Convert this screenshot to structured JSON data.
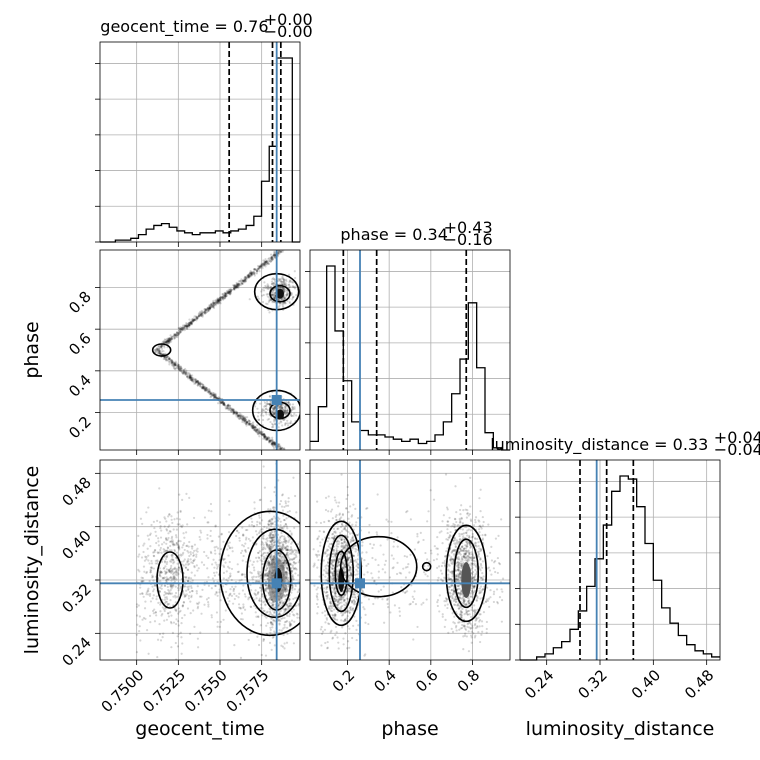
{
  "chart_data": {
    "type": "corner",
    "parameters": [
      {
        "name": "geocent_time",
        "ticks": [
          0.75,
          0.7525,
          0.755,
          0.7575
        ],
        "tick_labels": [
          "0.7500",
          "0.7525",
          "0.7550",
          "0.7575"
        ],
        "range": [
          0.7478,
          0.7598
        ],
        "truth": 0.7584
      },
      {
        "name": "phase",
        "ticks": [
          0.2,
          0.4,
          0.6,
          0.8
        ],
        "tick_labels": [
          "0.2",
          "0.4",
          "0.6",
          "0.8"
        ],
        "range": [
          0.02,
          0.98
        ],
        "truth": 0.26
      },
      {
        "name": "luminosity_distance",
        "ticks": [
          0.24,
          0.32,
          0.4,
          0.48
        ],
        "tick_labels": [
          "0.24",
          "0.32",
          "0.40",
          "0.48"
        ],
        "range": [
          0.2,
          0.5
        ],
        "truth": 0.315
      }
    ],
    "titles": [
      {
        "base": "geocent_time = 0.76",
        "sup": "+0.00",
        "sub": "−0.00"
      },
      {
        "base": "phase = 0.34",
        "sup": "+0.43",
        "sub": "−0.16"
      },
      {
        "base": "luminosity_distance = 0.33",
        "sup": "+0.04",
        "sub": "−0.04"
      }
    ],
    "quantiles": [
      [
        0.75555,
        0.75815,
        0.75865
      ],
      [
        0.18,
        0.34,
        0.77
      ],
      [
        0.29,
        0.33,
        0.37
      ]
    ],
    "histograms": [
      {
        "edges_start": 0.7478,
        "edges_end": 0.7598,
        "counts": [
          0,
          0,
          1,
          1,
          2,
          4,
          7,
          9,
          10,
          8,
          6,
          5,
          4,
          5,
          5,
          6,
          5,
          6,
          7,
          9,
          14,
          33,
          52,
          100,
          100,
          0
        ]
      },
      {
        "edges_start": 0.02,
        "edges_end": 0.98,
        "counts": [
          4,
          20,
          85,
          55,
          32,
          13,
          9,
          7,
          7,
          6,
          5,
          4,
          5,
          3,
          4,
          7,
          13,
          26,
          42,
          68,
          38,
          8,
          1,
          0
        ]
      },
      {
        "edges_start": 0.2,
        "edges_end": 0.5,
        "counts": [
          0,
          0,
          1,
          2,
          4,
          6,
          10,
          16,
          24,
          33,
          44,
          55,
          60,
          59,
          50,
          38,
          26,
          17,
          12,
          8,
          5,
          3,
          2,
          1
        ]
      }
    ],
    "grid": true
  }
}
